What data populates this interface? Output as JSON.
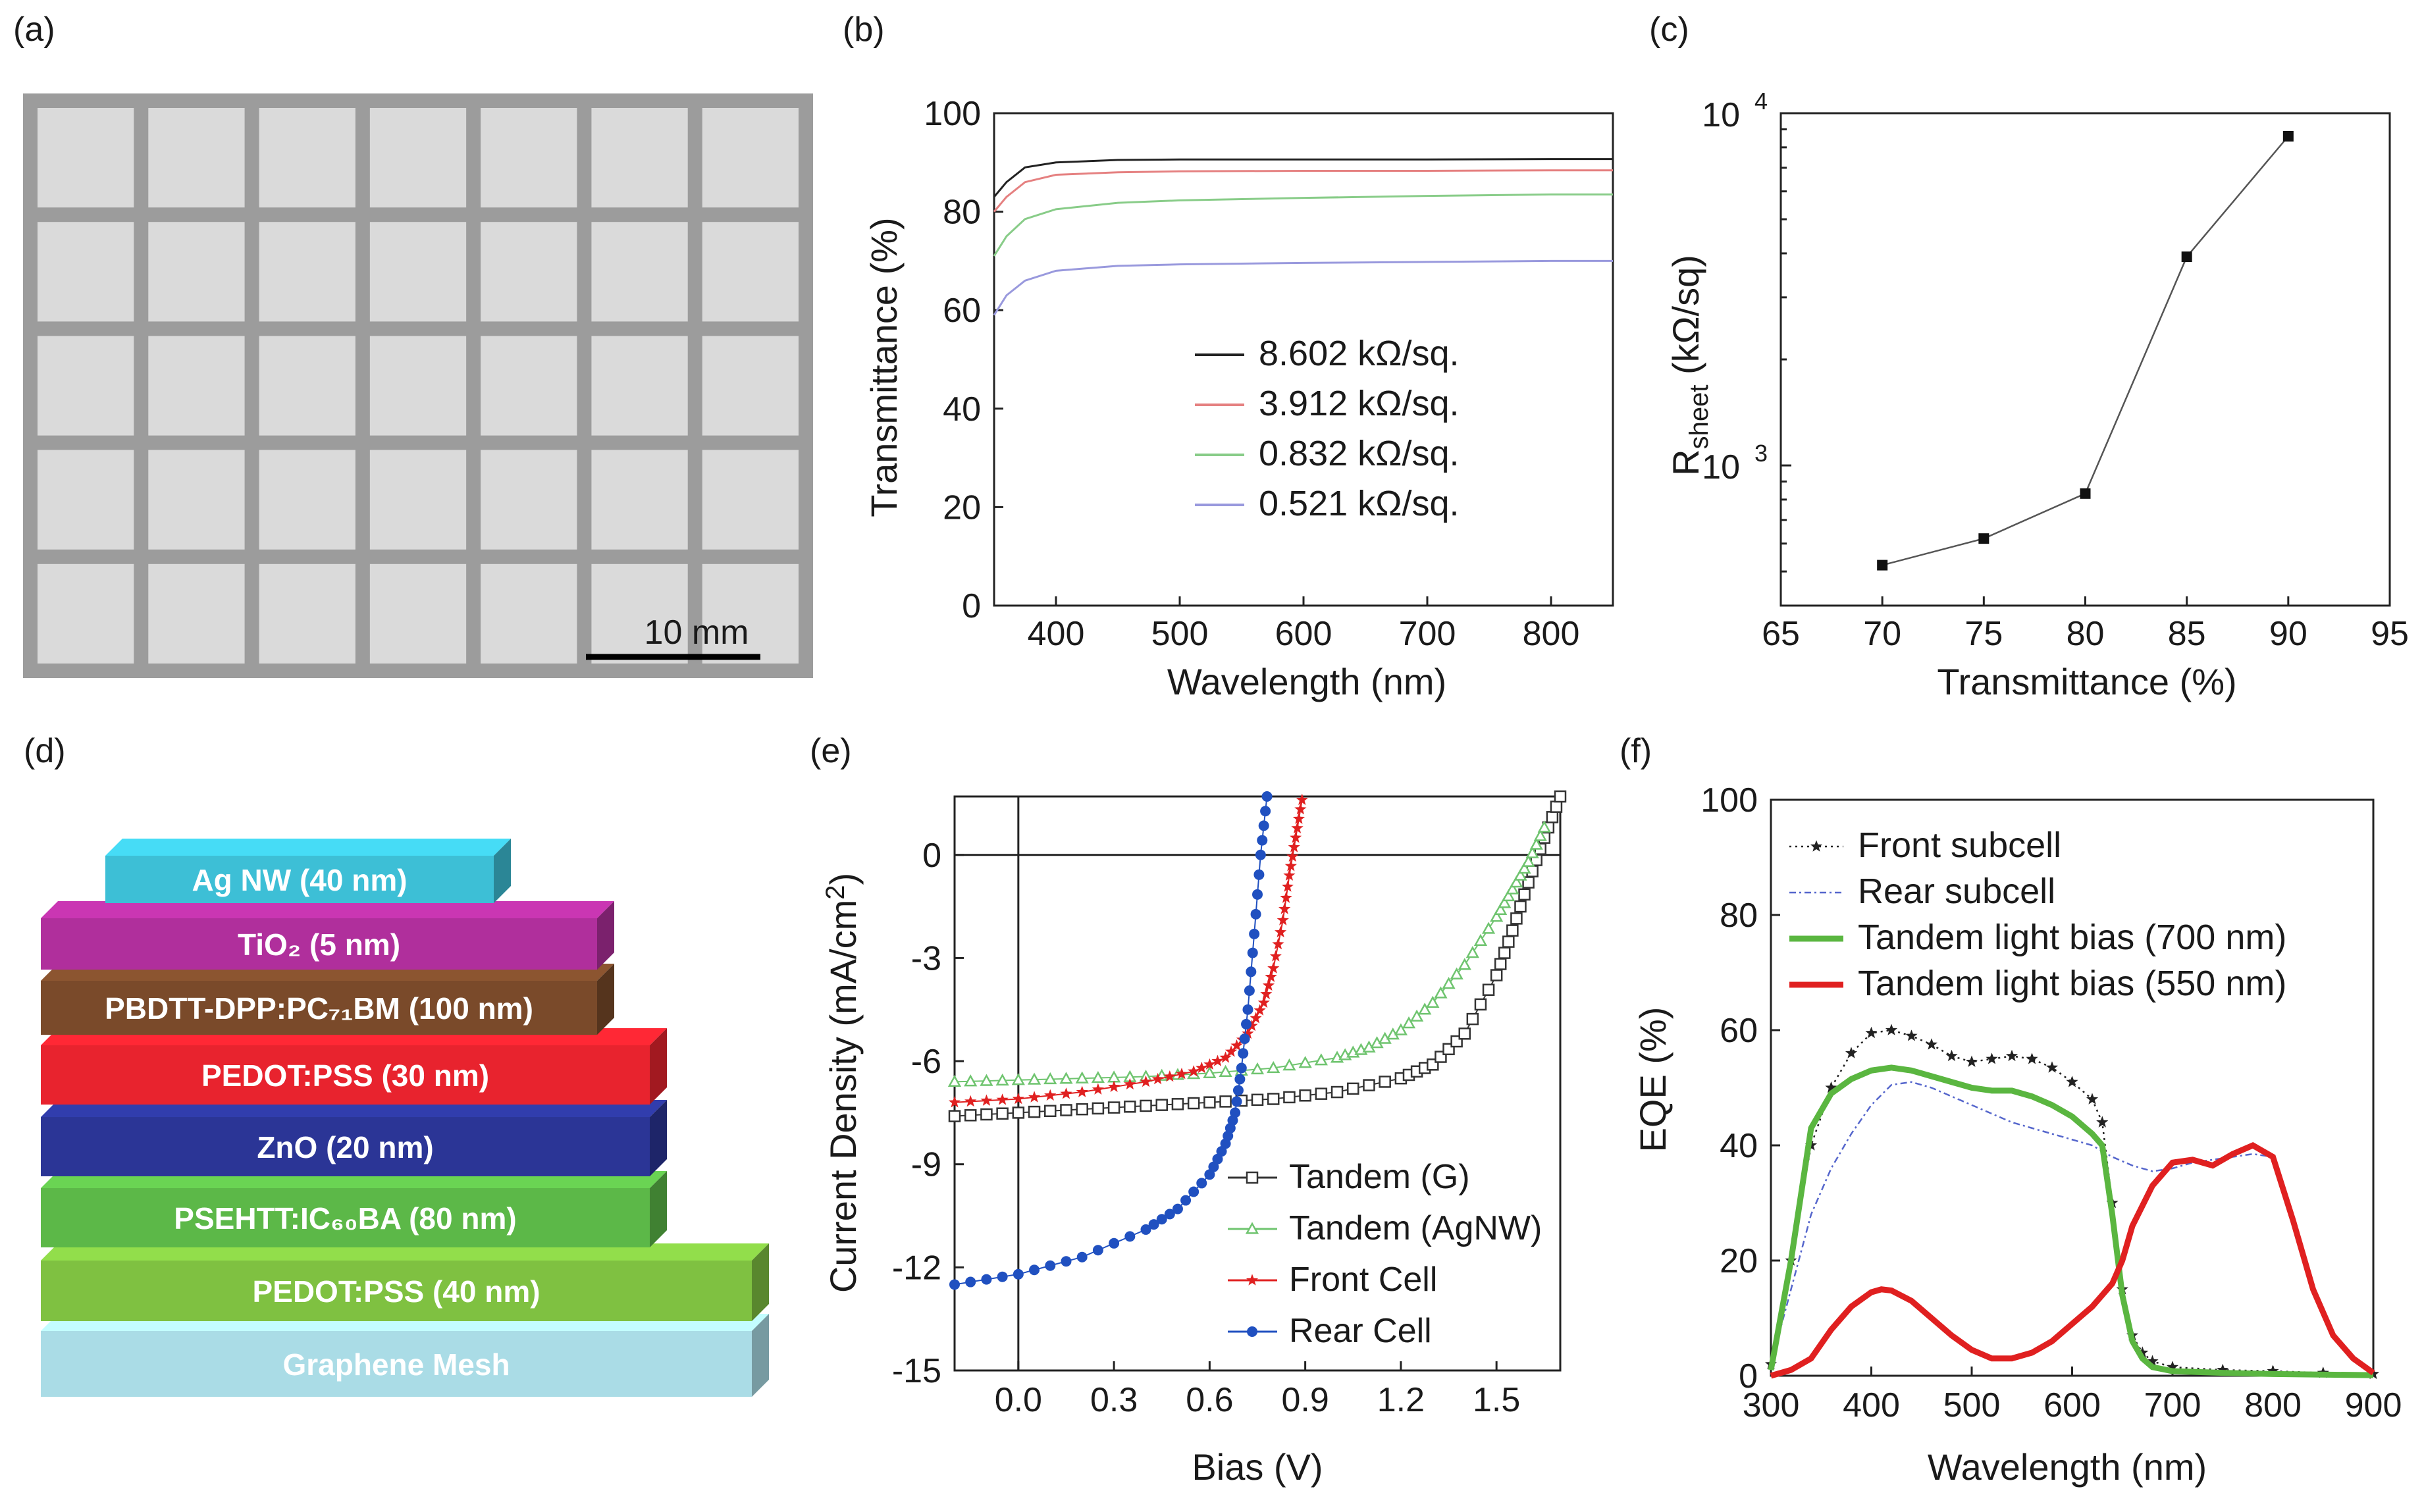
{
  "figure": {
    "panel_labels": [
      "(a)",
      "(b)",
      "(c)",
      "(d)",
      "(e)",
      "(f)"
    ]
  },
  "panel_a": {
    "scale_bar": "10 mm",
    "colors": {
      "background": "#9c9c9c",
      "cell": "#dadada"
    }
  },
  "panel_d": {
    "layers": [
      {
        "label": "Ag NW (40 nm)",
        "color": "#3dbfd6"
      },
      {
        "label": "TiO₂ (5 nm)",
        "color": "#b02f9c"
      },
      {
        "label": "PBDTT-DPP:PC₇₁BM (100 nm)",
        "color": "#7a4a2a"
      },
      {
        "label": "PEDOT:PSS (30 nm)",
        "color": "#e8232e"
      },
      {
        "label": "ZnO (20 nm)",
        "color": "#2b3596"
      },
      {
        "label": "PSEHTT:IC₆₀BA (80 nm)",
        "color": "#5cb848"
      },
      {
        "label": "PEDOT:PSS (40 nm)",
        "color": "#7fc141"
      },
      {
        "label": "Graphene Mesh",
        "color": "#aadce6"
      }
    ]
  },
  "chart_data": [
    {
      "panel": "(b)",
      "type": "line",
      "title": "",
      "xlabel": "Wavelength (nm)",
      "ylabel": "Transmittance (%)",
      "xlim": [
        350,
        850
      ],
      "ylim": [
        0,
        100
      ],
      "xticks": [
        400,
        500,
        600,
        700,
        800
      ],
      "yticks": [
        0,
        20,
        40,
        60,
        80,
        100
      ],
      "x": [
        350,
        360,
        375,
        400,
        450,
        500,
        600,
        700,
        800,
        850
      ],
      "series": [
        {
          "name": "8.602 kΩ/sq.",
          "color": "#222222",
          "values": [
            83,
            86,
            89,
            90,
            90.5,
            90.6,
            90.6,
            90.6,
            90.7,
            90.7
          ]
        },
        {
          "name": "3.912 kΩ/sq.",
          "color": "#e58080",
          "values": [
            80,
            83,
            86,
            87.5,
            88,
            88.2,
            88.3,
            88.3,
            88.4,
            88.4
          ]
        },
        {
          "name": "0.832 kΩ/sq.",
          "color": "#88cc88",
          "values": [
            71,
            75,
            78.5,
            80.5,
            81.8,
            82.3,
            82.8,
            83.2,
            83.5,
            83.5
          ]
        },
        {
          "name": "0.521 kΩ/sq.",
          "color": "#9999dd",
          "values": [
            59,
            63,
            66,
            68,
            69,
            69.3,
            69.6,
            69.8,
            70,
            70
          ]
        }
      ]
    },
    {
      "panel": "(c)",
      "type": "line",
      "title": "",
      "xlabel": "Transmittance (%)",
      "ylabel": "R_sheet (kΩ/sq)",
      "ylabel_main": "R",
      "ylabel_sub": "sheet",
      "ylabel_rest": " (kΩ/sq)",
      "yscale": "log",
      "xlim": [
        65,
        95
      ],
      "ylim": [
        400,
        10000
      ],
      "xticks": [
        65,
        70,
        75,
        80,
        85,
        90,
        95
      ],
      "yticks_labels": [
        {
          "value": 1000,
          "base": "10",
          "exp": "3"
        },
        {
          "value": 10000,
          "base": "10",
          "exp": "4"
        }
      ],
      "x": [
        70,
        75,
        80,
        85,
        90
      ],
      "values": [
        521,
        620,
        832,
        3912,
        8602
      ]
    },
    {
      "panel": "(e)",
      "type": "scatter",
      "title": "",
      "xlabel": "Bias (V)",
      "ylabel": "Current Density (mA/cm²)",
      "ylabel_main": "Current Density (mA/cm",
      "ylabel_sup": "2",
      "ylabel_end": ")",
      "xlim": [
        -0.2,
        1.7
      ],
      "ylim": [
        -15,
        1.7
      ],
      "xticks": [
        "0.0",
        "0.3",
        "0.6",
        "0.9",
        "1.2",
        "1.5"
      ],
      "xtick_values": [
        0,
        0.3,
        0.6,
        0.9,
        1.2,
        1.5
      ],
      "yticks": [
        "0",
        "-3",
        "-6",
        "-9",
        "-12",
        "-15"
      ],
      "ytick_values": [
        0,
        -3,
        -6,
        -9,
        -12,
        -15
      ],
      "series": [
        {
          "name": "Tandem (G)",
          "color": "#333333",
          "marker": "square",
          "x": [
            -0.2,
            0,
            0.2,
            0.4,
            0.6,
            0.8,
            1.0,
            1.2,
            1.3,
            1.4,
            1.5,
            1.55,
            1.6,
            1.65,
            1.7
          ],
          "values": [
            -7.6,
            -7.5,
            -7.4,
            -7.3,
            -7.2,
            -7.1,
            -6.9,
            -6.5,
            -6.1,
            -5.2,
            -3.5,
            -2.2,
            -0.8,
            0.5,
            1.7
          ]
        },
        {
          "name": "Tandem (AgNW)",
          "color": "#6fc46f",
          "marker": "triangle",
          "x": [
            -0.2,
            0,
            0.2,
            0.4,
            0.6,
            0.8,
            1.0,
            1.1,
            1.2,
            1.3,
            1.4,
            1.5,
            1.55,
            1.6,
            1.65
          ],
          "values": [
            -6.6,
            -6.55,
            -6.5,
            -6.45,
            -6.35,
            -6.2,
            -5.9,
            -5.6,
            -5.1,
            -4.3,
            -3.2,
            -1.8,
            -1.0,
            -0.2,
            0.8
          ]
        },
        {
          "name": "Front Cell",
          "color": "#e02020",
          "marker": "star",
          "x": [
            -0.2,
            0,
            0.2,
            0.4,
            0.55,
            0.65,
            0.72,
            0.77,
            0.8,
            0.83,
            0.85,
            0.87,
            0.89
          ],
          "values": [
            -7.2,
            -7.1,
            -6.9,
            -6.6,
            -6.3,
            -5.9,
            -5.2,
            -4.3,
            -3.3,
            -1.9,
            -0.6,
            0.5,
            1.6
          ]
        },
        {
          "name": "Rear Cell",
          "color": "#2050c0",
          "marker": "circle",
          "x": [
            -0.2,
            0,
            0.2,
            0.4,
            0.5,
            0.6,
            0.65,
            0.68,
            0.7,
            0.72,
            0.74,
            0.76,
            0.78
          ],
          "values": [
            -12.5,
            -12.2,
            -11.7,
            -10.9,
            -10.3,
            -9.3,
            -8.4,
            -7.5,
            -6.2,
            -4.5,
            -2.3,
            0,
            1.7
          ]
        }
      ]
    },
    {
      "panel": "(f)",
      "type": "line",
      "title": "",
      "xlabel": "Wavelength (nm)",
      "ylabel": "EQE (%)",
      "xlim": [
        300,
        900
      ],
      "ylim": [
        0,
        100
      ],
      "xticks": [
        300,
        400,
        500,
        600,
        700,
        800,
        900
      ],
      "yticks": [
        0,
        20,
        40,
        60,
        80,
        100
      ],
      "series": [
        {
          "name": "Front subcell",
          "color": "#222222",
          "style": "dotted-star",
          "x": [
            300,
            320,
            340,
            360,
            380,
            400,
            420,
            440,
            460,
            480,
            500,
            520,
            540,
            560,
            580,
            600,
            620,
            630,
            640,
            650,
            660,
            670,
            680,
            700,
            750,
            800,
            850,
            900
          ],
          "values": [
            2,
            20,
            40,
            50,
            56,
            59.5,
            60,
            59,
            57.5,
            55.5,
            54.5,
            55,
            55.5,
            55,
            53.5,
            51,
            48,
            44,
            30,
            15,
            7,
            4,
            2.5,
            1.5,
            1,
            0.8,
            0.5,
            0.3
          ]
        },
        {
          "name": "Rear subcell",
          "color": "#5566cc",
          "style": "dashdot",
          "x": [
            300,
            320,
            340,
            360,
            380,
            400,
            420,
            440,
            460,
            480,
            500,
            520,
            540,
            560,
            580,
            600,
            620,
            640,
            660,
            680,
            700,
            720,
            740,
            760,
            780,
            800
          ],
          "values": [
            2,
            15,
            28,
            36,
            42,
            47,
            50.5,
            51,
            50,
            48.5,
            47,
            45.5,
            44,
            43,
            42,
            41,
            40,
            38,
            36.5,
            35.5,
            36,
            37,
            37.5,
            38,
            38.5,
            38
          ]
        },
        {
          "name": "Tandem light bias (700 nm)",
          "color": "#5ab640",
          "style": "solid-thick",
          "x": [
            300,
            320,
            340,
            360,
            380,
            400,
            420,
            440,
            460,
            480,
            500,
            520,
            540,
            560,
            580,
            600,
            620,
            630,
            640,
            650,
            660,
            670,
            680,
            700,
            750,
            800,
            900
          ],
          "values": [
            1,
            20,
            43,
            49,
            51.5,
            53,
            53.5,
            53,
            52,
            51,
            50,
            49.5,
            49.5,
            48.5,
            47,
            45,
            42,
            40,
            28,
            14,
            6,
            3,
            1.5,
            0.8,
            0.5,
            0.3,
            0.1
          ]
        },
        {
          "name": "Tandem light bias (550 nm)",
          "color": "#e02020",
          "style": "solid-thick",
          "x": [
            300,
            320,
            340,
            360,
            380,
            400,
            410,
            420,
            440,
            460,
            480,
            500,
            520,
            540,
            560,
            580,
            600,
            620,
            640,
            650,
            660,
            680,
            700,
            720,
            740,
            760,
            780,
            800,
            820,
            840,
            860,
            880,
            900
          ],
          "values": [
            0,
            1,
            3,
            8,
            12,
            14.5,
            15,
            14.8,
            13,
            10,
            7,
            4.5,
            3,
            3,
            4,
            6,
            9,
            12,
            16,
            20,
            26,
            33,
            37,
            37.5,
            36.5,
            38.5,
            40,
            38,
            27,
            15,
            7,
            3,
            0.5
          ]
        }
      ]
    }
  ]
}
